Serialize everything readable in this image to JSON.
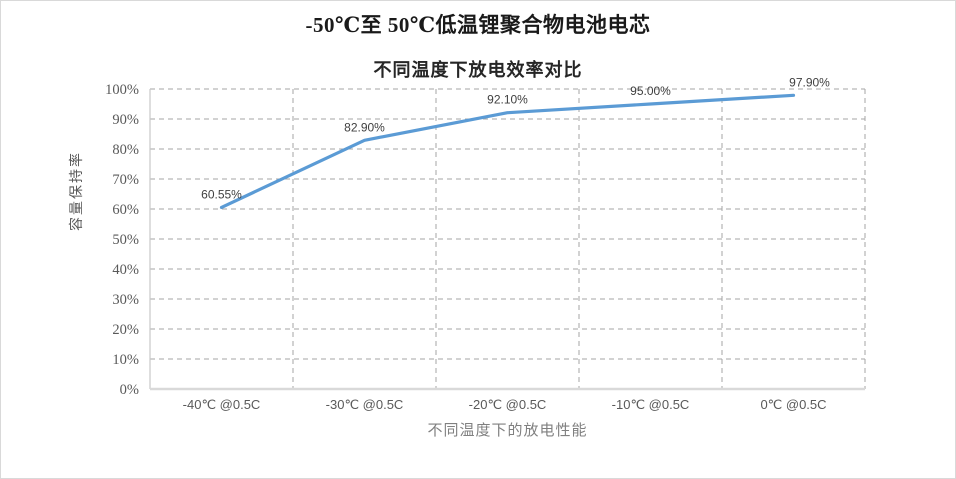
{
  "chart_data": {
    "type": "line",
    "title": "-50℃至 50℃低温锂聚合物电池电芯",
    "subtitle": "不同温度下放电效率对比",
    "categories": [
      "-40℃ @0.5C",
      "-30℃ @0.5C",
      "-20℃ @0.5C",
      "-10℃ @0.5C",
      "0℃ @0.5C"
    ],
    "series": [
      {
        "name": "容量保持率",
        "values": [
          60.55,
          82.9,
          92.1,
          95.0,
          97.9
        ]
      }
    ],
    "data_labels": [
      "60.55%",
      "82.90%",
      "92.10%",
      "95.00%",
      "97.90%"
    ],
    "xlabel": "不同温度下的放电性能",
    "ylabel": "容量保持率",
    "ylim": [
      0,
      100
    ],
    "ytick_step": 10,
    "ytick_suffix": "%",
    "grid": "dashed horizontal and vertical gridlines",
    "legend": "none",
    "marker": "none",
    "colors": {
      "line": "#5B9BD5",
      "gridline": "#A6A6A6",
      "y_axis_line": "#C9C9C9",
      "x_axis_line": "#D9D9D9",
      "tick_text": "#595959",
      "data_label_text": "#404040",
      "axis_title_text": "#808080",
      "title_text": "#1A1A1A",
      "border": "#D9D9D9",
      "background": "#FFFFFF"
    }
  }
}
